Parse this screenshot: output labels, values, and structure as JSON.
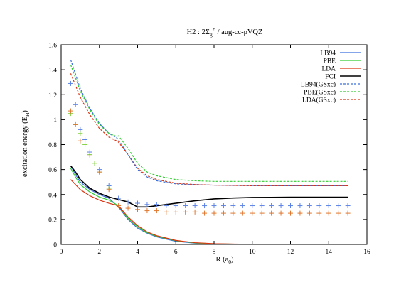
{
  "chart_data": {
    "type": "line",
    "title": "H2 : 2Σ_g^+ / aug-cc-pVQZ",
    "title_parts": {
      "lead": "H2 : 2Σ",
      "sub": "g",
      "sup": "+",
      "tail": " / aug-cc-pVQZ"
    },
    "xlabel": "R (a",
    "xlabel_sub": "0",
    "xlabel_tail": ")",
    "ylabel": "excitation energy (E",
    "ylabel_sub": "H",
    "ylabel_tail": ")",
    "xlim": [
      0,
      16
    ],
    "ylim": [
      0,
      1.6
    ],
    "xticks": [
      0,
      2,
      4,
      6,
      8,
      10,
      12,
      14,
      16
    ],
    "yticks": [
      0,
      0.2,
      0.4,
      0.6,
      0.8,
      1,
      1.2,
      1.4,
      1.6
    ],
    "ytick_labels": [
      "0",
      "0.2",
      "0.4",
      "0.6",
      "0.8",
      "1",
      "1.2",
      "1.4",
      "1.6"
    ],
    "grid": false,
    "legend_position": "top-right",
    "series": [
      {
        "name": "LB94",
        "color": "#3a6fdc",
        "style": "solid",
        "x": [
          0.5,
          0.75,
          1.0,
          1.5,
          2.0,
          2.5,
          3.0,
          3.5,
          4.0,
          4.5,
          5.0,
          6.0,
          7.0,
          8.0,
          9.0,
          10.0,
          12.0,
          15.0
        ],
        "y": [
          0.63,
          0.56,
          0.5,
          0.44,
          0.4,
          0.37,
          0.3,
          0.2,
          0.13,
          0.09,
          0.06,
          0.025,
          0.01,
          0.004,
          0.002,
          0.001,
          0.0,
          0.0
        ]
      },
      {
        "name": "PBE",
        "color": "#33cc33",
        "style": "solid",
        "x": [
          0.5,
          0.75,
          1.0,
          1.5,
          2.0,
          2.5,
          3.0,
          3.5,
          4.0,
          4.5,
          5.0,
          6.0,
          7.0,
          8.0,
          9.0,
          10.0,
          12.0,
          15.0
        ],
        "y": [
          0.61,
          0.54,
          0.48,
          0.42,
          0.38,
          0.355,
          0.31,
          0.21,
          0.14,
          0.095,
          0.065,
          0.03,
          0.012,
          0.005,
          0.002,
          0.001,
          0.0,
          0.0
        ]
      },
      {
        "name": "LDA",
        "color": "#dd3311",
        "style": "solid",
        "x": [
          0.5,
          0.75,
          1.0,
          1.5,
          2.0,
          2.5,
          3.0,
          3.5,
          4.0,
          4.5,
          5.0,
          6.0,
          7.0,
          8.0,
          9.0,
          10.0,
          12.0,
          15.0
        ],
        "y": [
          0.52,
          0.48,
          0.44,
          0.39,
          0.355,
          0.33,
          0.31,
          0.22,
          0.15,
          0.1,
          0.07,
          0.032,
          0.014,
          0.006,
          0.003,
          0.001,
          0.0,
          0.0
        ]
      },
      {
        "name": "FCI",
        "color": "#000000",
        "style": "solid",
        "x": [
          0.5,
          0.75,
          1.0,
          1.5,
          2.0,
          2.5,
          3.0,
          3.5,
          4.0,
          4.5,
          5.0,
          6.0,
          7.0,
          8.0,
          9.0,
          10.0,
          12.0,
          15.0
        ],
        "y": [
          0.63,
          0.58,
          0.52,
          0.45,
          0.41,
          0.38,
          0.36,
          0.34,
          0.3,
          0.3,
          0.31,
          0.33,
          0.35,
          0.365,
          0.372,
          0.376,
          0.378,
          0.378
        ]
      },
      {
        "name": "LB94(GSxc)",
        "color": "#3a6fdc",
        "style": "dashed",
        "x": [
          0.5,
          1.0,
          1.5,
          2.0,
          2.5,
          2.9,
          3.0,
          3.5,
          4.0,
          4.5,
          5.0,
          6.0,
          7.0,
          8.0,
          10.0,
          12.0,
          15.0
        ],
        "y": [
          1.48,
          1.25,
          1.09,
          0.97,
          0.89,
          0.855,
          0.84,
          0.72,
          0.6,
          0.54,
          0.51,
          0.485,
          0.478,
          0.475,
          0.472,
          0.47,
          0.47
        ]
      },
      {
        "name": "PBE(GSxc)",
        "color": "#33cc33",
        "style": "dashed",
        "x": [
          0.5,
          1.0,
          1.5,
          2.0,
          2.5,
          2.9,
          3.0,
          3.5,
          4.0,
          4.5,
          5.0,
          6.0,
          7.0,
          8.0,
          10.0,
          12.0,
          15.0
        ],
        "y": [
          1.44,
          1.23,
          1.08,
          0.96,
          0.89,
          0.865,
          0.87,
          0.77,
          0.65,
          0.58,
          0.55,
          0.52,
          0.51,
          0.505,
          0.505,
          0.505,
          0.505
        ]
      },
      {
        "name": "LDA(GSxc)",
        "color": "#dd3311",
        "style": "dashed",
        "x": [
          0.5,
          1.0,
          1.5,
          2.0,
          2.5,
          2.9,
          3.0,
          3.5,
          4.0,
          4.5,
          5.0,
          6.0,
          7.0,
          8.0,
          10.0,
          12.0,
          15.0
        ],
        "y": [
          1.37,
          1.18,
          1.04,
          0.93,
          0.86,
          0.83,
          0.82,
          0.72,
          0.61,
          0.55,
          0.52,
          0.49,
          0.48,
          0.475,
          0.47,
          0.47,
          0.47
        ]
      }
    ],
    "marker_series": [
      {
        "color": "#5b82e6",
        "x": [
          0.5,
          0.75,
          1.0,
          1.25,
          1.5,
          2.0,
          2.5,
          3.0,
          3.5,
          4.0,
          4.5,
          5.0,
          5.5,
          6.0,
          6.5,
          7.0,
          7.5,
          8.0,
          8.5,
          9.0,
          9.5,
          10.0,
          10.5,
          11.0,
          11.5,
          12.0,
          12.5,
          13.0,
          13.5,
          14.0,
          14.5,
          15.0
        ],
        "y": [
          1.29,
          1.12,
          0.92,
          0.84,
          0.74,
          0.6,
          0.47,
          0.37,
          0.34,
          0.33,
          0.32,
          0.32,
          0.31,
          0.31,
          0.31,
          0.31,
          0.31,
          0.31,
          0.31,
          0.31,
          0.31,
          0.31,
          0.31,
          0.31,
          0.31,
          0.31,
          0.31,
          0.31,
          0.31,
          0.31,
          0.31,
          0.31
        ]
      },
      {
        "color": "#88d34a",
        "x": [
          0.5,
          0.75,
          1.0,
          1.25,
          1.5,
          1.75,
          2.0,
          2.5
        ],
        "y": [
          1.05,
          0.96,
          0.89,
          0.8,
          0.72,
          0.65,
          0.58,
          0.45
        ]
      },
      {
        "color": "#e0772e",
        "x": [
          0.5,
          0.75,
          1.0,
          1.5,
          2.0,
          2.5,
          3.0,
          3.5,
          4.0,
          4.5,
          5.0,
          5.5,
          6.0,
          6.5,
          7.0,
          7.5,
          8.0,
          8.5,
          9.0,
          9.5,
          10.0,
          10.5,
          11.0,
          11.5,
          12.0,
          12.5,
          13.0,
          13.5,
          14.0,
          14.5,
          15.0
        ],
        "y": [
          1.07,
          0.96,
          0.83,
          0.71,
          0.58,
          0.44,
          0.31,
          0.29,
          0.28,
          0.27,
          0.27,
          0.26,
          0.26,
          0.26,
          0.26,
          0.25,
          0.25,
          0.25,
          0.25,
          0.25,
          0.25,
          0.25,
          0.25,
          0.25,
          0.25,
          0.25,
          0.25,
          0.25,
          0.25,
          0.25,
          0.25
        ]
      }
    ]
  }
}
